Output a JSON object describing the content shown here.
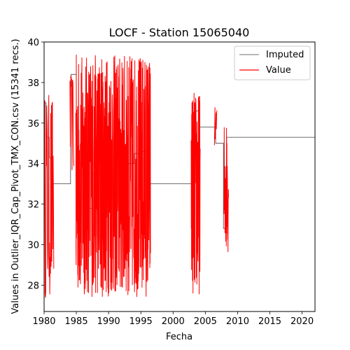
{
  "chart_data": {
    "type": "line",
    "title": "LOCF - Station 15065040",
    "xlabel": "Fecha",
    "ylabel": "Values in Outlier_IQR_Cap_Pivot_TMX_CON.csv (15341 recs.)",
    "xlim": [
      1980,
      2022
    ],
    "ylim": [
      26.7,
      40
    ],
    "x_ticks": [
      1980,
      1985,
      1990,
      1995,
      2000,
      2005,
      2010,
      2015,
      2020
    ],
    "y_ticks": [
      28,
      30,
      32,
      34,
      36,
      38,
      40
    ],
    "legend_position": "upper right",
    "grid": false,
    "series": [
      {
        "name": "Imputed",
        "color": "#404040",
        "style": "step",
        "points": [
          [
            1980.0,
            37.0
          ],
          [
            1980.3,
            35.3
          ],
          [
            1980.6,
            35.3
          ],
          [
            1980.8,
            34.3
          ],
          [
            1981.0,
            33.2
          ],
          [
            1981.3,
            33.0
          ],
          [
            1984.0,
            33.0
          ],
          [
            1984.1,
            37.8
          ],
          [
            1984.2,
            38.4
          ],
          [
            1984.9,
            38.4
          ],
          [
            1985.0,
            34.0
          ],
          [
            1986.6,
            31.8
          ],
          [
            1987.0,
            31.8
          ],
          [
            1987.5,
            33.5
          ],
          [
            1989.0,
            33.0
          ],
          [
            1989.3,
            34.2
          ],
          [
            1990.0,
            34.2
          ],
          [
            1991.0,
            32.5
          ],
          [
            1992.5,
            34.0
          ],
          [
            1994.0,
            34.5
          ],
          [
            1995.0,
            34.6
          ],
          [
            1995.9,
            37.0
          ],
          [
            1996.3,
            33.0
          ],
          [
            2003.0,
            33.0
          ],
          [
            2003.4,
            36.6
          ],
          [
            2004.0,
            35.8
          ],
          [
            2006.5,
            35.8
          ],
          [
            2006.6,
            35.0
          ],
          [
            2007.6,
            35.0
          ],
          [
            2007.8,
            30.8
          ],
          [
            2008.1,
            30.8
          ],
          [
            2008.3,
            35.3
          ],
          [
            2022.0,
            35.3
          ]
        ]
      },
      {
        "name": "Value",
        "color": "#ff0000",
        "style": "line",
        "segments": [
          {
            "start": 1980.0,
            "end": 1981.5,
            "vmin": 27.3,
            "vmax": 37.5,
            "n": 30
          },
          {
            "start": 1984.0,
            "end": 1984.6,
            "vmin": 33.5,
            "vmax": 38.4,
            "n": 10
          },
          {
            "start": 1984.9,
            "end": 1996.5,
            "vmin": 27.4,
            "vmax": 39.4,
            "n": 520
          },
          {
            "start": 2002.8,
            "end": 2004.2,
            "vmin": 27.5,
            "vmax": 37.6,
            "n": 70
          },
          {
            "start": 2006.4,
            "end": 2006.8,
            "vmin": 34.9,
            "vmax": 36.8,
            "n": 10
          },
          {
            "start": 2007.9,
            "end": 2008.6,
            "vmin": 29.6,
            "vmax": 36.2,
            "n": 25
          }
        ]
      }
    ]
  }
}
